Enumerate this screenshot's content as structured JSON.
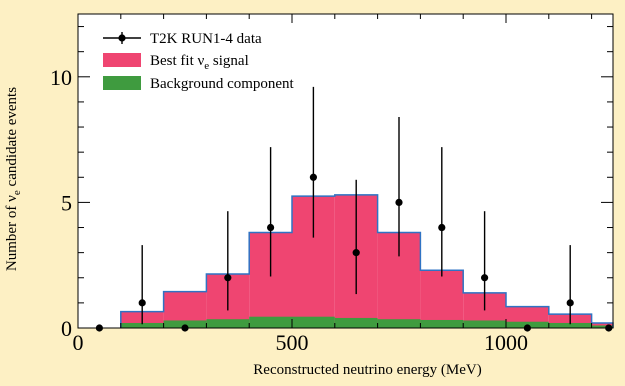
{
  "chart_data": {
    "type": "histogram",
    "xlabel": "Reconstructed neutrino energy (MeV)",
    "ylabel_prefix": "Number of ",
    "ylabel_symbol": "ν",
    "ylabel_subscript": "e",
    "ylabel_suffix": " candidate events",
    "xlim": [
      0,
      1250
    ],
    "ylim": [
      0,
      12.5
    ],
    "x_ticks": [
      0,
      500,
      1000
    ],
    "x_tick_labels": [
      "0",
      "500",
      "1000"
    ],
    "y_ticks": [
      0,
      5,
      10
    ],
    "y_tick_labels": [
      "0",
      "5",
      "10"
    ],
    "bin_edges": [
      100,
      200,
      300,
      400,
      500,
      600,
      700,
      800,
      900,
      1000,
      1100,
      1200,
      1250
    ],
    "series": [
      {
        "name": "Best fit νe signal",
        "kind": "filled-histogram",
        "color": "#ef4571",
        "outline_color": "#2f73c4",
        "values": [
          0.65,
          1.45,
          2.15,
          3.8,
          5.25,
          5.3,
          3.8,
          2.3,
          1.4,
          0.85,
          0.55,
          0.2
        ]
      },
      {
        "name": "Background component",
        "kind": "filled-histogram",
        "color": "#3f9b3f",
        "values": [
          0.2,
          0.3,
          0.35,
          0.45,
          0.45,
          0.4,
          0.35,
          0.32,
          0.3,
          0.25,
          0.2,
          0.1
        ]
      },
      {
        "name": "T2K RUN1-4 data",
        "kind": "points-with-errors",
        "color": "#000000",
        "points": [
          {
            "x": 50,
            "y": 0,
            "err_low": 0,
            "err_high": 0
          },
          {
            "x": 150,
            "y": 1,
            "err_low": 0.85,
            "err_high": 2.3
          },
          {
            "x": 250,
            "y": 0,
            "err_low": 0,
            "err_high": 0
          },
          {
            "x": 350,
            "y": 2,
            "err_low": 1.3,
            "err_high": 2.65
          },
          {
            "x": 450,
            "y": 4,
            "err_low": 1.95,
            "err_high": 3.2
          },
          {
            "x": 550,
            "y": 6,
            "err_low": 2.4,
            "err_high": 3.6
          },
          {
            "x": 650,
            "y": 3,
            "err_low": 1.65,
            "err_high": 2.9
          },
          {
            "x": 750,
            "y": 5,
            "err_low": 2.15,
            "err_high": 3.4
          },
          {
            "x": 850,
            "y": 4,
            "err_low": 1.95,
            "err_high": 3.2
          },
          {
            "x": 950,
            "y": 2,
            "err_low": 1.3,
            "err_high": 2.65
          },
          {
            "x": 1050,
            "y": 0,
            "err_low": 0,
            "err_high": 0
          },
          {
            "x": 1150,
            "y": 1,
            "err_low": 0.85,
            "err_high": 2.3
          },
          {
            "x": 1240,
            "y": 0,
            "err_low": 0,
            "err_high": 0
          }
        ]
      }
    ],
    "legend": {
      "position": "top-left",
      "entries": [
        {
          "series": "T2K RUN1-4 data",
          "label_main": "T2K RUN1-4 data",
          "label_sub": "",
          "label_tail": ""
        },
        {
          "series": "Best fit νe signal",
          "label_main": "Best fit ν",
          "label_sub": "e",
          "label_tail": " signal"
        },
        {
          "series": "Background component",
          "label_main": "Background component",
          "label_sub": "",
          "label_tail": ""
        }
      ]
    }
  }
}
